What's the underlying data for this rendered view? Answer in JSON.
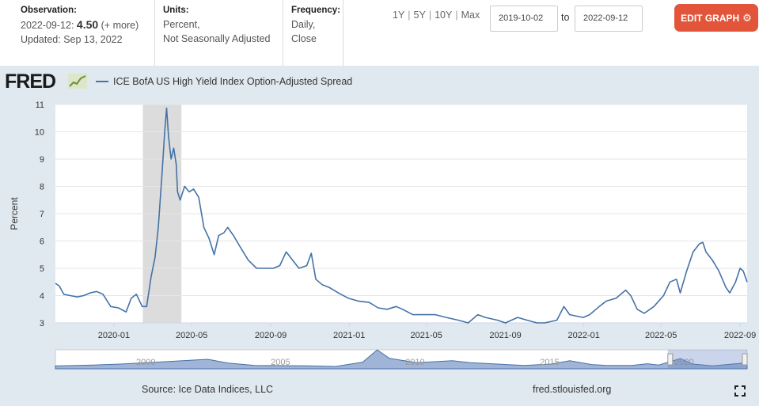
{
  "header": {
    "observation_label": "Observation:",
    "observation_date": "2022-09-12:",
    "observation_value": "4.50",
    "observation_more": "(+ more)",
    "updated": "Updated: Sep 13, 2022",
    "units_label": "Units:",
    "units_value": "Percent,",
    "units_value2": "Not Seasonally Adjusted",
    "frequency_label": "Frequency:",
    "frequency_value": "Daily,",
    "frequency_value2": "Close",
    "ranges": [
      "1Y",
      "5Y",
      "10Y",
      "Max"
    ],
    "range_separator": "|",
    "start_date": "2019-10-02",
    "to_label": "to",
    "end_date": "2022-09-12",
    "edit_label": "EDIT GRAPH"
  },
  "logo": {
    "text": "FRED"
  },
  "footer": {
    "source": "Source: Ice Data Indices, LLC",
    "url": "fred.stlouisfed.org"
  },
  "colors": {
    "line": "#4572a7",
    "recession": "#dcdcdc",
    "edit_button": "#e2553a",
    "background": "#e1e9f0"
  },
  "icons": {
    "gear": "gear-icon",
    "fullscreen": "fullscreen-icon",
    "logo_chart": "logo-chart-icon"
  },
  "chart_data": {
    "type": "line",
    "series": [
      {
        "name": "ICE BofA US High Yield Index Option-Adjusted Spread",
        "points": [
          [
            "2019-10-02",
            4.45
          ],
          [
            "2019-10-08",
            4.35
          ],
          [
            "2019-10-15",
            4.05
          ],
          [
            "2019-10-25",
            4.0
          ],
          [
            "2019-11-05",
            3.95
          ],
          [
            "2019-11-15",
            4.0
          ],
          [
            "2019-11-25",
            4.1
          ],
          [
            "2019-12-05",
            4.15
          ],
          [
            "2019-12-15",
            4.05
          ],
          [
            "2019-12-27",
            3.6
          ],
          [
            "2020-01-08",
            3.55
          ],
          [
            "2020-01-20",
            3.4
          ],
          [
            "2020-01-28",
            3.9
          ],
          [
            "2020-02-05",
            4.05
          ],
          [
            "2020-02-14",
            3.6
          ],
          [
            "2020-02-21",
            3.6
          ],
          [
            "2020-02-28",
            4.7
          ],
          [
            "2020-03-05",
            5.4
          ],
          [
            "2020-03-10",
            6.5
          ],
          [
            "2020-03-16",
            8.5
          ],
          [
            "2020-03-20",
            10.0
          ],
          [
            "2020-03-23",
            10.87
          ],
          [
            "2020-03-26",
            9.8
          ],
          [
            "2020-03-30",
            9.0
          ],
          [
            "2020-04-03",
            9.4
          ],
          [
            "2020-04-07",
            8.8
          ],
          [
            "2020-04-09",
            7.8
          ],
          [
            "2020-04-13",
            7.5
          ],
          [
            "2020-04-20",
            8.0
          ],
          [
            "2020-04-27",
            7.8
          ],
          [
            "2020-05-04",
            7.9
          ],
          [
            "2020-05-12",
            7.6
          ],
          [
            "2020-05-20",
            6.5
          ],
          [
            "2020-05-28",
            6.1
          ],
          [
            "2020-06-05",
            5.5
          ],
          [
            "2020-06-12",
            6.2
          ],
          [
            "2020-06-20",
            6.3
          ],
          [
            "2020-06-26",
            6.5
          ],
          [
            "2020-07-05",
            6.2
          ],
          [
            "2020-07-15",
            5.8
          ],
          [
            "2020-07-28",
            5.3
          ],
          [
            "2020-08-10",
            5.0
          ],
          [
            "2020-08-25",
            5.0
          ],
          [
            "2020-09-05",
            5.0
          ],
          [
            "2020-09-15",
            5.1
          ],
          [
            "2020-09-25",
            5.6
          ],
          [
            "2020-10-05",
            5.3
          ],
          [
            "2020-10-15",
            5.0
          ],
          [
            "2020-10-27",
            5.1
          ],
          [
            "2020-11-03",
            5.55
          ],
          [
            "2020-11-10",
            4.6
          ],
          [
            "2020-11-20",
            4.4
          ],
          [
            "2020-12-01",
            4.3
          ],
          [
            "2020-12-15",
            4.1
          ],
          [
            "2020-12-31",
            3.9
          ],
          [
            "2021-01-15",
            3.8
          ],
          [
            "2021-02-01",
            3.75
          ],
          [
            "2021-02-15",
            3.55
          ],
          [
            "2021-03-01",
            3.5
          ],
          [
            "2021-03-15",
            3.6
          ],
          [
            "2021-03-25",
            3.5
          ],
          [
            "2021-04-10",
            3.3
          ],
          [
            "2021-05-01",
            3.3
          ],
          [
            "2021-05-15",
            3.3
          ],
          [
            "2021-06-01",
            3.2
          ],
          [
            "2021-06-20",
            3.1
          ],
          [
            "2021-07-05",
            3.0
          ],
          [
            "2021-07-20",
            3.3
          ],
          [
            "2021-08-01",
            3.2
          ],
          [
            "2021-08-20",
            3.1
          ],
          [
            "2021-09-01",
            3.0
          ],
          [
            "2021-09-20",
            3.2
          ],
          [
            "2021-10-05",
            3.1
          ],
          [
            "2021-10-20",
            3.0
          ],
          [
            "2021-11-01",
            3.0
          ],
          [
            "2021-11-20",
            3.1
          ],
          [
            "2021-12-01",
            3.6
          ],
          [
            "2021-12-10",
            3.3
          ],
          [
            "2021-12-31",
            3.2
          ],
          [
            "2022-01-10",
            3.3
          ],
          [
            "2022-01-25",
            3.6
          ],
          [
            "2022-02-05",
            3.8
          ],
          [
            "2022-02-20",
            3.9
          ],
          [
            "2022-03-07",
            4.2
          ],
          [
            "2022-03-15",
            4.0
          ],
          [
            "2022-03-25",
            3.5
          ],
          [
            "2022-04-05",
            3.35
          ],
          [
            "2022-04-20",
            3.6
          ],
          [
            "2022-05-05",
            4.0
          ],
          [
            "2022-05-15",
            4.5
          ],
          [
            "2022-05-25",
            4.6
          ],
          [
            "2022-05-31",
            4.1
          ],
          [
            "2022-06-10",
            4.9
          ],
          [
            "2022-06-20",
            5.6
          ],
          [
            "2022-06-30",
            5.9
          ],
          [
            "2022-07-05",
            5.95
          ],
          [
            "2022-07-10",
            5.6
          ],
          [
            "2022-07-20",
            5.3
          ],
          [
            "2022-07-30",
            4.9
          ],
          [
            "2022-08-10",
            4.3
          ],
          [
            "2022-08-16",
            4.1
          ],
          [
            "2022-08-25",
            4.5
          ],
          [
            "2022-09-01",
            5.0
          ],
          [
            "2022-09-06",
            4.9
          ],
          [
            "2022-09-12",
            4.5
          ]
        ]
      }
    ],
    "ylabel": "Percent",
    "ylim": [
      3,
      11
    ],
    "yticks": [
      3,
      4,
      5,
      6,
      7,
      8,
      9,
      10,
      11
    ],
    "xlim": [
      "2019-10-02",
      "2022-09-12"
    ],
    "xticks": [
      "2020-01",
      "2020-05",
      "2020-09",
      "2021-01",
      "2021-05",
      "2021-09",
      "2022-01",
      "2022-05",
      "2022-09"
    ],
    "recession_bands": [
      [
        "2020-02-15",
        "2020-04-15"
      ]
    ],
    "grid": true,
    "navigator": {
      "labels": [
        "2000",
        "2005",
        "2010",
        "2015",
        "2020"
      ],
      "range": [
        "1997-01-01",
        "2022-09-12"
      ],
      "selected": [
        "2019-10-02",
        "2022-09-12"
      ],
      "values": [
        [
          "1997-01-01",
          3.0
        ],
        [
          "1998-06-01",
          4.0
        ],
        [
          "1999-06-01",
          5.0
        ],
        [
          "2000-06-01",
          6.5
        ],
        [
          "2001-06-01",
          8.0
        ],
        [
          "2002-09-01",
          10.0
        ],
        [
          "2003-06-01",
          6.0
        ],
        [
          "2004-06-01",
          3.5
        ],
        [
          "2005-06-01",
          3.3
        ],
        [
          "2006-06-01",
          3.2
        ],
        [
          "2007-06-01",
          2.5
        ],
        [
          "2008-06-01",
          7.0
        ],
        [
          "2008-12-15",
          19.9
        ],
        [
          "2009-06-01",
          11.0
        ],
        [
          "2010-06-01",
          6.5
        ],
        [
          "2011-10-01",
          8.5
        ],
        [
          "2012-06-01",
          6.5
        ],
        [
          "2013-06-01",
          5.0
        ],
        [
          "2014-06-01",
          3.5
        ],
        [
          "2015-06-01",
          5.0
        ],
        [
          "2016-02-10",
          8.5
        ],
        [
          "2016-12-01",
          4.5
        ],
        [
          "2017-06-01",
          3.7
        ],
        [
          "2018-06-01",
          3.5
        ],
        [
          "2018-12-28",
          5.3
        ],
        [
          "2019-06-01",
          4.0
        ],
        [
          "2020-03-23",
          10.87
        ],
        [
          "2020-09-01",
          5.0
        ],
        [
          "2021-06-01",
          3.2
        ],
        [
          "2022-07-05",
          5.95
        ],
        [
          "2022-09-12",
          4.5
        ]
      ]
    }
  }
}
